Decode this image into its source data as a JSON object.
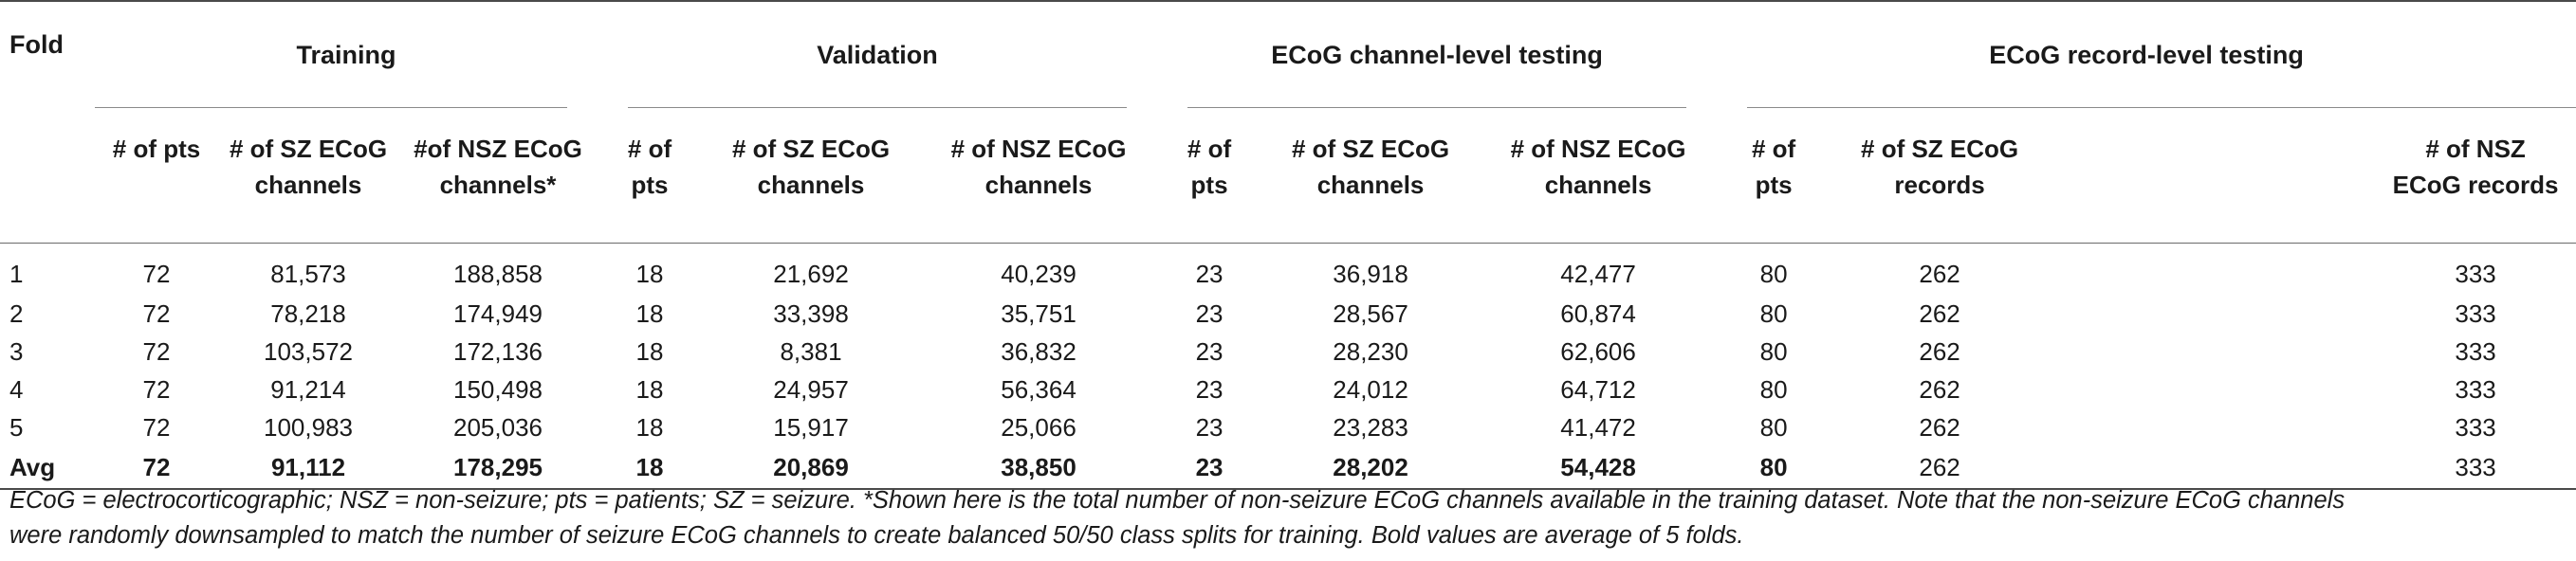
{
  "header": {
    "fold_label": "Fold",
    "groups": [
      "Training",
      "Validation",
      "ECoG channel-level testing",
      "ECoG record-level testing"
    ],
    "subcolumns": [
      [
        "# of pts",
        "# of SZ ECoG channels",
        "#of NSZ ECoG channels*"
      ],
      [
        "# of pts",
        "# of SZ ECoG channels",
        "# of NSZ ECoG channels"
      ],
      [
        "# of pts",
        "# of SZ ECoG channels",
        "# of NSZ ECoG channels"
      ],
      [
        "# of pts",
        "# of SZ ECoG records",
        "# of NSZ ECoG records"
      ]
    ],
    "subcolumn_lines": [
      [
        [
          "# of pts"
        ],
        [
          "# of SZ ECoG",
          "channels"
        ],
        [
          "#of NSZ ECoG",
          "channels*"
        ]
      ],
      [
        [
          "# of",
          "pts"
        ],
        [
          "# of SZ ECoG",
          "channels"
        ],
        [
          "# of NSZ ECoG",
          "channels"
        ]
      ],
      [
        [
          "# of",
          "pts"
        ],
        [
          "# of SZ ECoG",
          "channels"
        ],
        [
          "# of NSZ ECoG",
          "channels"
        ]
      ],
      [
        [
          "# of",
          "pts"
        ],
        [
          "# of SZ ECoG",
          "records"
        ],
        [
          "# of NSZ",
          "ECoG records"
        ]
      ]
    ]
  },
  "rows": [
    [
      "1",
      "72",
      "81,573",
      "188,858",
      "18",
      "21,692",
      "40,239",
      "23",
      "36,918",
      "42,477",
      "80",
      "262",
      "333"
    ],
    [
      "2",
      "72",
      "78,218",
      "174,949",
      "18",
      "33,398",
      "35,751",
      "23",
      "28,567",
      "60,874",
      "80",
      "262",
      "333"
    ],
    [
      "3",
      "72",
      "103,572",
      "172,136",
      "18",
      "8,381",
      "36,832",
      "23",
      "28,230",
      "62,606",
      "80",
      "262",
      "333"
    ],
    [
      "4",
      "72",
      "91,214",
      "150,498",
      "18",
      "24,957",
      "56,364",
      "23",
      "24,012",
      "64,712",
      "80",
      "262",
      "333"
    ],
    [
      "5",
      "72",
      "100,983",
      "205,036",
      "18",
      "15,917",
      "25,066",
      "23",
      "23,283",
      "41,472",
      "80",
      "262",
      "333"
    ]
  ],
  "avg_row": [
    "Avg",
    "72",
    "91,112",
    "178,295",
    "18",
    "20,869",
    "38,850",
    "23",
    "28,202",
    "54,428",
    "80",
    "262",
    "333"
  ],
  "footnote": {
    "line1": "ECoG = electrocorticographic; NSZ = non-seizure; pts = patients; SZ = seizure. *Shown here is the total number of non-seizure ECoG channels available in the training dataset. Note that the non-seizure ECoG channels",
    "line2": "were randomly downsampled to match the number of seizure ECoG channels to create balanced 50/50 class splits for training. Bold values are average of 5 folds."
  }
}
